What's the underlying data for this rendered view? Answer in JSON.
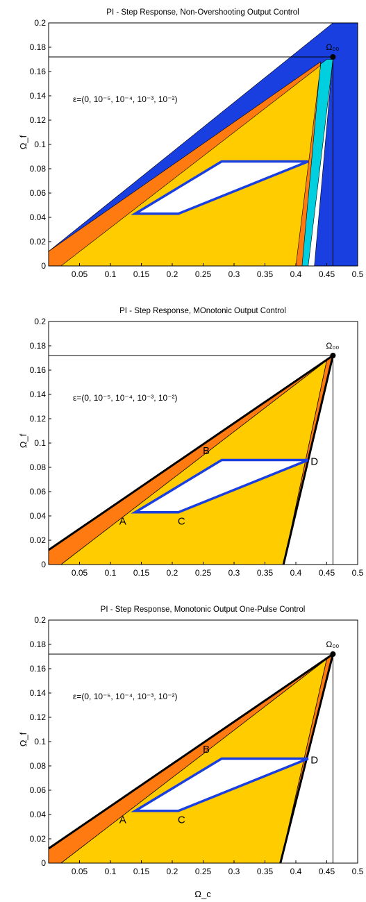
{
  "chart_data": [
    {
      "type": "area",
      "title": "PI - Step Response, Non-Overshooting Output Control",
      "xlabel": "",
      "ylabel": "Ω_f",
      "xlim": [
        0,
        0.5
      ],
      "ylim": [
        0,
        0.2
      ],
      "xticks": [
        "0.05",
        "0.1",
        "0.15",
        "0.2",
        "0.25",
        "0.3",
        "0.35",
        "0.4",
        "0.45",
        "0.5"
      ],
      "yticks": [
        "0",
        "0.02",
        "0.04",
        "0.06",
        "0.08",
        "0.1",
        "0.12",
        "0.14",
        "0.16",
        "0.18",
        "0.2"
      ],
      "annotation": "ε=(0, 10⁻⁵, 10⁻⁴, 10⁻³, 10⁻²)",
      "corner_label": "Ω₀₀",
      "corner": [
        0.46,
        0.172
      ],
      "regions": [
        {
          "color": "#1a3fe0",
          "points": [
            [
              0,
              0.012
            ],
            [
              0.46,
              0.2
            ],
            [
              0.5,
              0.2
            ],
            [
              0.5,
              0.0
            ],
            [
              0.43,
              0.0
            ],
            [
              0.46,
              0.172
            ],
            [
              0.39,
              0.04
            ]
          ]
        },
        {
          "color": "#00cfe0",
          "points": [
            [
              0.1,
              0.033
            ],
            [
              0.45,
              0.17
            ],
            [
              0.46,
              0.17
            ],
            [
              0.42,
              0.0
            ],
            [
              0.39,
              0.0
            ]
          ]
        },
        {
          "color": "#ff7a10",
          "points": [
            [
              0,
              0.012
            ],
            [
              0.44,
              0.168
            ],
            [
              0.41,
              0.0
            ],
            [
              0,
              0
            ]
          ]
        },
        {
          "color": "#ffcc00",
          "points": [
            [
              0.02,
              0.0
            ],
            [
              0.44,
              0.165
            ],
            [
              0.4,
              0.0
            ]
          ]
        }
      ],
      "parallelogram": {
        "color": "#1a3fe0",
        "points": [
          [
            0.14,
            0.043
          ],
          [
            0.21,
            0.043
          ],
          [
            0.42,
            0.086
          ],
          [
            0.28,
            0.086
          ]
        ]
      },
      "point_labels": []
    },
    {
      "type": "area",
      "title": "PI - Step Response, MOnotonic Output Control",
      "xlabel": "",
      "ylabel": "Ω_f",
      "xlim": [
        0,
        0.5
      ],
      "ylim": [
        0,
        0.2
      ],
      "xticks": [
        "0.05",
        "0.1",
        "0.15",
        "0.2",
        "0.25",
        "0.3",
        "0.35",
        "0.4",
        "0.45",
        "0.5"
      ],
      "yticks": [
        "0",
        "0.02",
        "0.04",
        "0.06",
        "0.08",
        "0.1",
        "0.12",
        "0.14",
        "0.16",
        "0.18",
        "0.2"
      ],
      "annotation": "ε=(0, 10⁻⁵, 10⁻⁴, 10⁻³, 10⁻²)",
      "corner_label": "Ω₀₀",
      "corner": [
        0.46,
        0.172
      ],
      "regions": [
        {
          "color": "#ff7a10",
          "points": [
            [
              0,
              0.012
            ],
            [
              0.46,
              0.172
            ],
            [
              0.38,
              0
            ],
            [
              0,
              0
            ]
          ]
        },
        {
          "color": "#ffcc00",
          "points": [
            [
              0.02,
              0.0
            ],
            [
              0.45,
              0.168
            ],
            [
              0.38,
              0.0
            ]
          ]
        }
      ],
      "parallelogram": {
        "color": "#1a3fe0",
        "points": [
          [
            0.14,
            0.043
          ],
          [
            0.21,
            0.043
          ],
          [
            0.42,
            0.086
          ],
          [
            0.28,
            0.086
          ]
        ]
      },
      "point_labels": [
        {
          "text": "A",
          "x": 0.12,
          "y": 0.033
        },
        {
          "text": "B",
          "x": 0.255,
          "y": 0.091
        },
        {
          "text": "C",
          "x": 0.215,
          "y": 0.033
        },
        {
          "text": "D",
          "x": 0.43,
          "y": 0.082
        }
      ]
    },
    {
      "type": "area",
      "title": "PI - Step Response, Monotonic Output One-Pulse Control",
      "xlabel": "Ω_c",
      "ylabel": "Ω_f",
      "xlim": [
        0,
        0.5
      ],
      "ylim": [
        0,
        0.2
      ],
      "xticks": [
        "0.05",
        "0.1",
        "0.15",
        "0.2",
        "0.25",
        "0.3",
        "0.35",
        "0.4",
        "0.45",
        "0.5"
      ],
      "yticks": [
        "0",
        "0.02",
        "0.04",
        "0.06",
        "0.08",
        "0.1",
        "0.12",
        "0.14",
        "0.16",
        "0.18",
        "0.2"
      ],
      "annotation": "ε=(0, 10⁻⁵, 10⁻⁴, 10⁻³, 10⁻²)",
      "corner_label": "Ω₀₀",
      "corner": [
        0.46,
        0.172
      ],
      "regions": [
        {
          "color": "#ff7a10",
          "points": [
            [
              0,
              0.012
            ],
            [
              0.46,
              0.172
            ],
            [
              0.375,
              0
            ],
            [
              0,
              0
            ]
          ]
        },
        {
          "color": "#ffcc00",
          "points": [
            [
              0.02,
              0.0
            ],
            [
              0.45,
              0.168
            ],
            [
              0.375,
              0.0
            ]
          ]
        }
      ],
      "parallelogram": {
        "color": "#1a3fe0",
        "points": [
          [
            0.14,
            0.043
          ],
          [
            0.21,
            0.043
          ],
          [
            0.42,
            0.086
          ],
          [
            0.28,
            0.086
          ]
        ]
      },
      "point_labels": [
        {
          "text": "A",
          "x": 0.12,
          "y": 0.033
        },
        {
          "text": "B",
          "x": 0.255,
          "y": 0.091
        },
        {
          "text": "C",
          "x": 0.215,
          "y": 0.033
        },
        {
          "text": "D",
          "x": 0.43,
          "y": 0.082
        }
      ]
    }
  ]
}
